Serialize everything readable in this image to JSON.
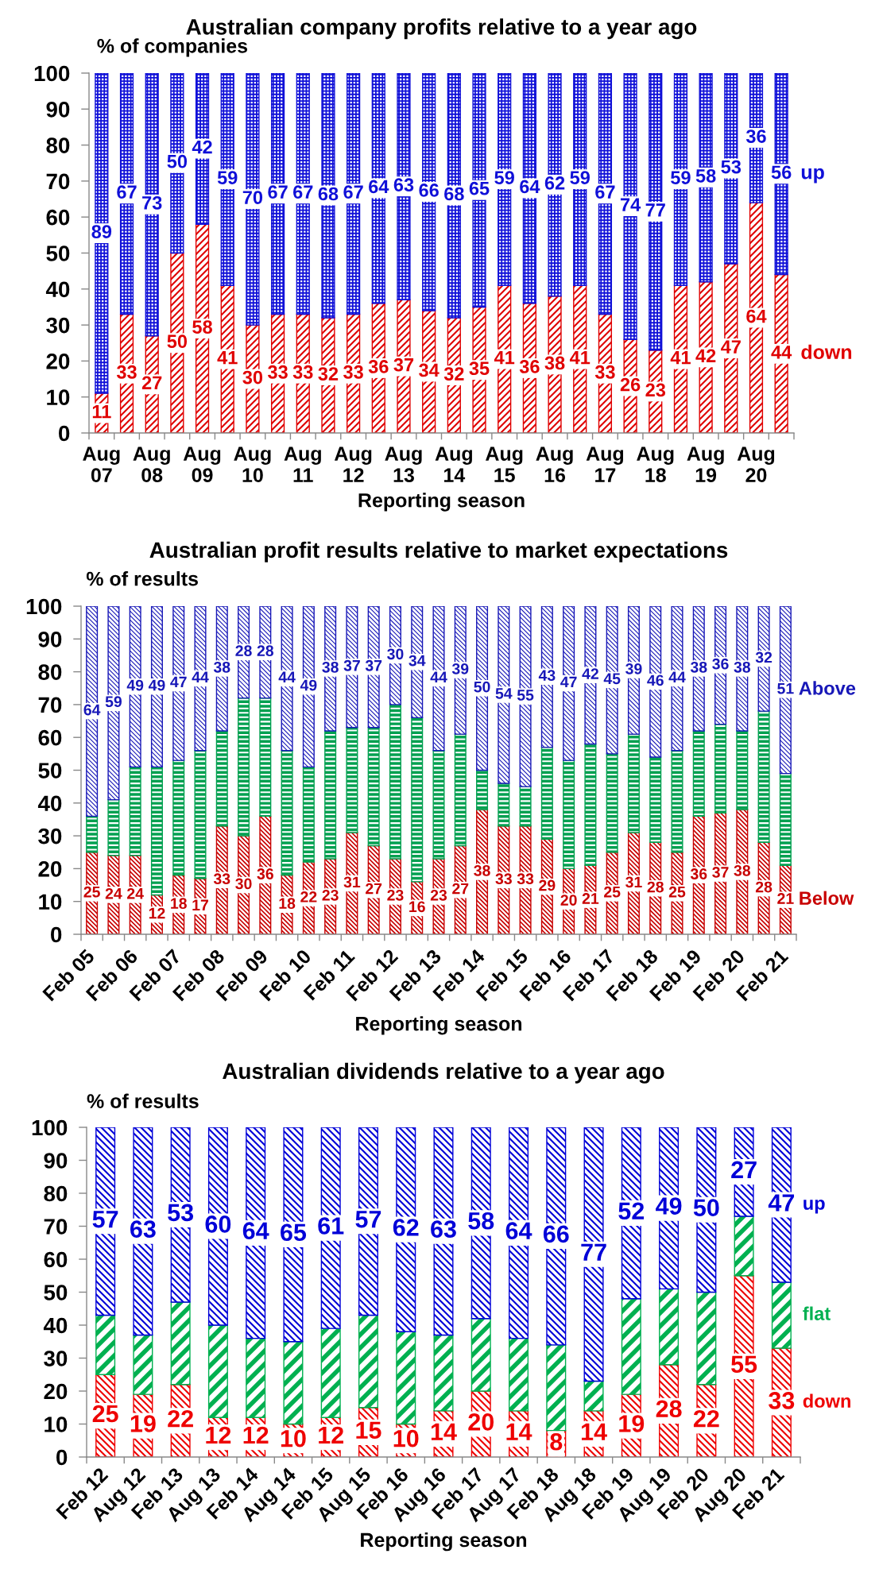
{
  "chart_data": [
    {
      "type": "bar",
      "stacked": true,
      "title": "Australian company profits relative to a year ago",
      "ylabel": "% of companies",
      "xlabel": "Reporting season",
      "categories": [
        "Aug\n07",
        null,
        "Aug\n08",
        null,
        "Aug\n09",
        null,
        "Aug\n10",
        null,
        "Aug\n11",
        null,
        "Aug\n12",
        null,
        "Aug\n13",
        null,
        "Aug\n14",
        null,
        "Aug\n15",
        null,
        "Aug\n16",
        null,
        "Aug\n17",
        null,
        "Aug\n18",
        null,
        "Aug\n19",
        null,
        "Aug\n20",
        null
      ],
      "series": [
        {
          "name": "down",
          "color": "#e00000",
          "values": [
            11,
            33,
            27,
            50,
            58,
            41,
            30,
            33,
            33,
            32,
            33,
            36,
            37,
            34,
            32,
            35,
            41,
            36,
            38,
            41,
            33,
            26,
            23,
            41,
            42,
            47,
            64,
            44
          ]
        },
        {
          "name": "up",
          "color": "#1010d8",
          "values": [
            89,
            67,
            73,
            50,
            42,
            59,
            70,
            67,
            67,
            68,
            67,
            64,
            63,
            66,
            68,
            65,
            59,
            64,
            62,
            59,
            67,
            74,
            77,
            59,
            58,
            53,
            36,
            56
          ]
        }
      ],
      "data_labels": true,
      "ylim": [
        0,
        100
      ],
      "yticks": [
        0,
        10,
        20,
        30,
        40,
        50,
        60,
        70,
        80,
        90,
        100
      ]
    },
    {
      "type": "bar",
      "stacked": true,
      "title": "Australian profit results relative to market expectations",
      "ylabel": "% of results",
      "xlabel": "Reporting season",
      "categories": [
        "Feb 05",
        null,
        "Feb 06",
        null,
        "Feb 07",
        null,
        "Feb 08",
        null,
        "Feb 09",
        null,
        "Feb 10",
        null,
        "Feb 11",
        null,
        "Feb 12",
        null,
        "Feb 13",
        null,
        "Feb 14",
        null,
        "Feb 15",
        null,
        "Feb 16",
        null,
        "Feb 17",
        null,
        "Feb 18",
        null,
        "Feb 19",
        null,
        "Feb 20",
        null,
        "Feb 21"
      ],
      "series": [
        {
          "name": "Below",
          "color": "#c80000",
          "values": [
            25,
            24,
            24,
            12,
            18,
            17,
            33,
            30,
            36,
            18,
            22,
            23,
            31,
            27,
            23,
            16,
            23,
            27,
            38,
            33,
            33,
            29,
            20,
            21,
            25,
            31,
            28,
            25,
            36,
            37,
            38,
            28,
            21
          ],
          "value_labels": [
            "25",
            "24",
            "24",
            "12",
            "18",
            "17",
            "33",
            "30",
            "36",
            "18",
            "22",
            "23",
            "31",
            "27",
            "23",
            "16",
            "23",
            "27",
            "38",
            "33",
            "33",
            "29",
            "20",
            "21",
            "25",
            "31",
            "28",
            "25",
            "36",
            "37",
            "38",
            "28",
            "21"
          ]
        },
        {
          "color": "#00a050",
          "values": [
            11,
            17,
            27,
            39,
            35,
            39,
            29,
            42,
            36,
            38,
            29,
            39,
            32,
            36,
            47,
            50,
            33,
            34,
            12,
            13,
            12,
            28,
            33,
            37,
            30,
            30,
            26,
            31,
            26,
            27,
            24,
            40,
            28
          ]
        },
        {
          "name": "Above",
          "color": "#1818b8",
          "values": [
            64,
            59,
            49,
            49,
            47,
            44,
            38,
            28,
            28,
            44,
            49,
            38,
            37,
            37,
            30,
            34,
            44,
            39,
            50,
            54,
            55,
            43,
            47,
            42,
            45,
            39,
            46,
            44,
            38,
            36,
            38,
            32,
            51
          ],
          "value_labels": [
            "64",
            "59",
            "49",
            "49",
            "47",
            "44",
            "38",
            "28",
            "28",
            "44",
            "49",
            "38",
            "37",
            "37",
            "30",
            "34",
            "44",
            "39",
            "50",
            "54",
            "55",
            "43",
            "47",
            "42",
            "45",
            "39",
            "46",
            "44",
            "38",
            "36",
            "38",
            "32",
            "51"
          ]
        }
      ],
      "ylim": [
        0,
        100
      ],
      "yticks": [
        0,
        10,
        20,
        30,
        40,
        50,
        60,
        70,
        80,
        90,
        100
      ]
    },
    {
      "type": "bar",
      "stacked": true,
      "title": "Australian dividends relative to a year ago",
      "ylabel": "% of results",
      "xlabel": "Reporting season",
      "categories": [
        "Feb 12",
        "Aug 12",
        "Feb 13",
        "Aug 13",
        "Feb 14",
        "Aug 14",
        "Feb 15",
        "Aug 15",
        "Feb 16",
        "Aug 16",
        "Feb 17",
        "Aug 17",
        "Feb 18",
        "Aug 18",
        "Feb 19",
        "Aug 19",
        "Feb 20",
        "Aug 20",
        "Feb 21"
      ],
      "series": [
        {
          "name": "down",
          "color": "#ee0000",
          "values": [
            25,
            19,
            22,
            12,
            12,
            10,
            12,
            15,
            10,
            14,
            20,
            14,
            8,
            14,
            19,
            28,
            22,
            55,
            33
          ],
          "value_labels": [
            "25",
            "19",
            "22",
            "12",
            "12",
            "10",
            "12",
            "15",
            "10",
            "14",
            "20",
            "14",
            "8",
            "14",
            "19",
            "28",
            "22",
            "55",
            "33"
          ]
        },
        {
          "name": "flat",
          "color": "#00b050",
          "values": [
            18,
            18,
            25,
            28,
            24,
            25,
            27,
            28,
            28,
            23,
            22,
            22,
            26,
            9,
            29,
            23,
            28,
            18,
            20
          ]
        },
        {
          "name": "up",
          "color": "#0000d8",
          "values": [
            57,
            63,
            53,
            60,
            64,
            65,
            61,
            57,
            62,
            63,
            58,
            64,
            66,
            77,
            52,
            49,
            50,
            27,
            47
          ],
          "value_labels": [
            "57",
            "63",
            "53",
            "60",
            "64",
            "65",
            "61",
            "57",
            "62",
            "63",
            "58",
            "64",
            "66",
            "77",
            "52",
            "49",
            "50",
            "27",
            "47"
          ]
        }
      ],
      "ylim": [
        0,
        100
      ],
      "yticks": [
        0,
        10,
        20,
        30,
        40,
        50,
        60,
        70,
        80,
        90,
        100
      ]
    }
  ]
}
